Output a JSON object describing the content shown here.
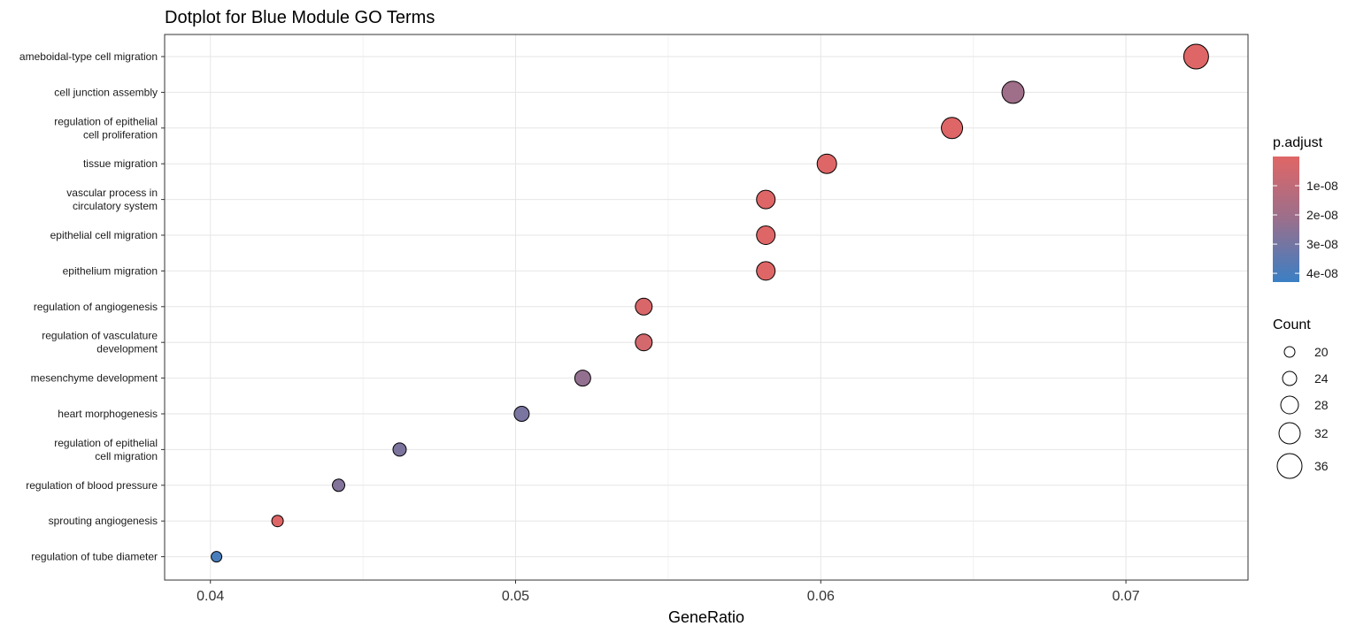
{
  "chart_data": {
    "type": "scatter",
    "title": "Dotplot for Blue Module GO Terms",
    "xlabel": "GeneRatio",
    "ylabel": "",
    "xlim": [
      0.0385,
      0.074
    ],
    "x_ticks": [
      0.04,
      0.05,
      0.06,
      0.07
    ],
    "x_tick_labels": [
      "0.04",
      "0.05",
      "0.06",
      "0.07"
    ],
    "grid": true,
    "categories": [
      "ameboidal-type cell migration",
      "cell junction assembly",
      "regulation of epithelial\ncell proliferation",
      "tissue migration",
      "vascular process in\ncirculatory system",
      "epithelial cell migration",
      "epithelium migration",
      "regulation of angiogenesis",
      "regulation of vasculature\ndevelopment",
      "mesenchyme development",
      "heart morphogenesis",
      "regulation of epithelial\ncell migration",
      "regulation of blood pressure",
      "sprouting angiogenesis",
      "regulation of tube diameter"
    ],
    "points": [
      {
        "term": "ameboidal-type cell migration",
        "gene_ratio": 0.0723,
        "count": 36,
        "p_adjust": 2e-10
      },
      {
        "term": "cell junction assembly",
        "gene_ratio": 0.0663,
        "count": 33,
        "p_adjust": 2e-08
      },
      {
        "term": "regulation of epithelial\ncell proliferation",
        "gene_ratio": 0.0643,
        "count": 32,
        "p_adjust": 5e-10
      },
      {
        "term": "tissue migration",
        "gene_ratio": 0.0602,
        "count": 30,
        "p_adjust": 2e-10
      },
      {
        "term": "vascular process in\ncirculatory system",
        "gene_ratio": 0.0582,
        "count": 29,
        "p_adjust": 5e-10
      },
      {
        "term": "epithelial cell migration",
        "gene_ratio": 0.0582,
        "count": 29,
        "p_adjust": 2e-10
      },
      {
        "term": "epithelium migration",
        "gene_ratio": 0.0582,
        "count": 29,
        "p_adjust": 2e-10
      },
      {
        "term": "regulation of angiogenesis",
        "gene_ratio": 0.0542,
        "count": 27,
        "p_adjust": 2e-09
      },
      {
        "term": "regulation of vasculature\ndevelopment",
        "gene_ratio": 0.0542,
        "count": 27,
        "p_adjust": 4e-09
      },
      {
        "term": "mesenchyme development",
        "gene_ratio": 0.0522,
        "count": 26,
        "p_adjust": 2.3e-08
      },
      {
        "term": "heart morphogenesis",
        "gene_ratio": 0.0502,
        "count": 25,
        "p_adjust": 2.9e-08
      },
      {
        "term": "regulation of epithelial\ncell migration",
        "gene_ratio": 0.0462,
        "count": 23,
        "p_adjust": 2.8e-08
      },
      {
        "term": "regulation of blood pressure",
        "gene_ratio": 0.0442,
        "count": 22,
        "p_adjust": 2.7e-08
      },
      {
        "term": "sprouting angiogenesis",
        "gene_ratio": 0.0422,
        "count": 21,
        "p_adjust": 5e-10
      },
      {
        "term": "regulation of tube diameter",
        "gene_ratio": 0.0402,
        "count": 20,
        "p_adjust": 4e-08
      }
    ],
    "color_legend": {
      "title": "p.adjust",
      "high_color": "#e06666",
      "low_color": "#3b7fc4",
      "ticks": [
        1e-08,
        2e-08,
        3e-08,
        4e-08
      ],
      "tick_labels": [
        "1e-08",
        "2e-08",
        "3e-08",
        "4e-08"
      ],
      "placement": "right"
    },
    "size_legend": {
      "title": "Count",
      "values": [
        20,
        24,
        28,
        32,
        36
      ],
      "labels": [
        "20",
        "24",
        "28",
        "32",
        "36"
      ],
      "placement": "right"
    }
  }
}
